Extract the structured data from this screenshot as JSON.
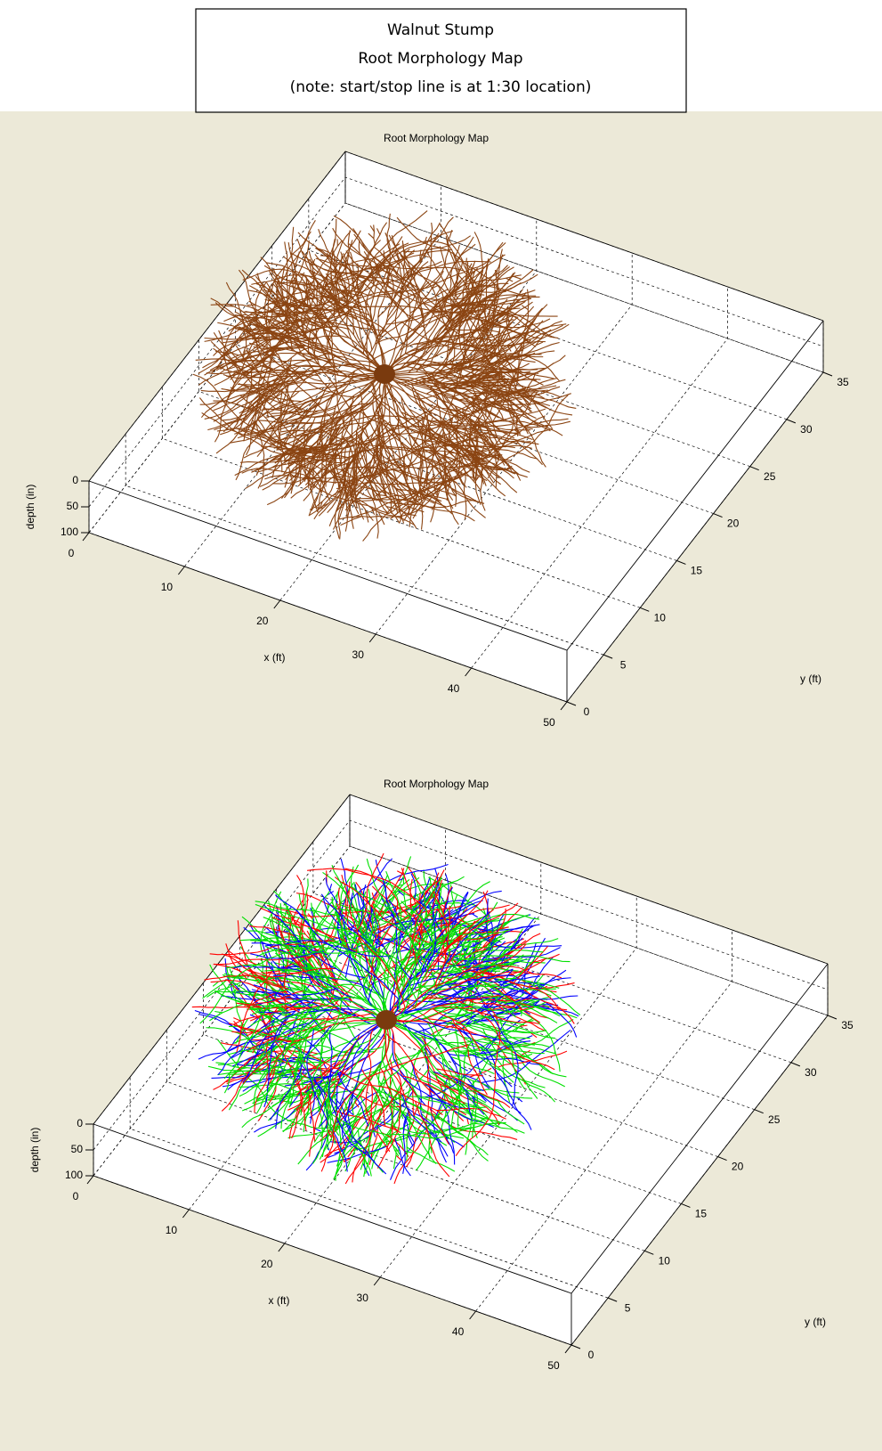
{
  "header": {
    "lines": [
      "Walnut Stump",
      "Root Morphology Map",
      "(note: start/stop line is at 1:30 location)"
    ]
  },
  "chart_data": [
    {
      "type": "root-map-3d",
      "title": "Root Morphology Map",
      "xlabel": "x (ft)",
      "ylabel": "y (ft)",
      "zlabel": "depth (in)",
      "xlim": [
        0,
        50
      ],
      "ylim": [
        0,
        35
      ],
      "zlim": [
        0,
        100
      ],
      "xticks": [
        0,
        10,
        20,
        30,
        40,
        50
      ],
      "yticks": [
        0,
        5,
        10,
        15,
        20,
        25,
        30,
        35
      ],
      "zticks": [
        0,
        50,
        100
      ],
      "grid": true,
      "colors": [
        "#8b4513"
      ],
      "stump_color": "#7a3a0e"
    },
    {
      "type": "root-map-3d",
      "title": "Root Morphology Map",
      "xlabel": "x (ft)",
      "ylabel": "y (ft)",
      "zlabel": "depth (in)",
      "xlim": [
        0,
        50
      ],
      "ylim": [
        0,
        35
      ],
      "zlim": [
        0,
        100
      ],
      "xticks": [
        0,
        10,
        20,
        30,
        40,
        50
      ],
      "yticks": [
        0,
        5,
        10,
        15,
        20,
        25,
        30,
        35
      ],
      "zticks": [
        0,
        50,
        100
      ],
      "grid": true,
      "colors": [
        "#00e000",
        "#00e000",
        "#0000ff",
        "#ff0000"
      ],
      "stump_color": "#7a3a0e"
    }
  ]
}
